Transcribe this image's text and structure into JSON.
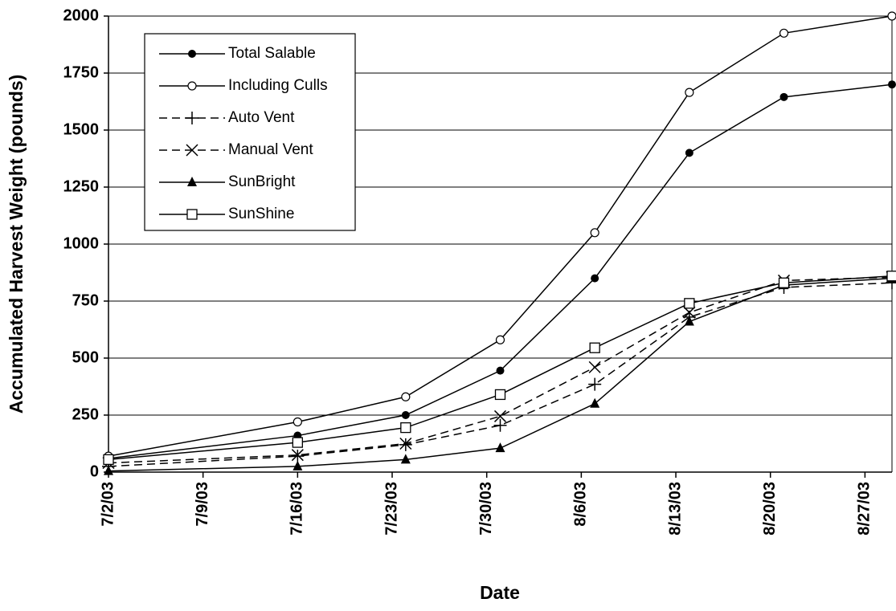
{
  "chart_data": {
    "type": "line",
    "x_label": "Date",
    "y_label": "Accumulated Harvest Weight (pounds)",
    "x": [
      "7/2/03",
      "7/16/03",
      "7/24/03",
      "7/31/03",
      "8/7/03",
      "8/14/03",
      "8/21/03",
      "8/29/03"
    ],
    "xlim": [
      "7/2/03",
      "8/29/03"
    ],
    "xticks": [
      "7/2/03",
      "7/9/03",
      "7/16/03",
      "7/23/03",
      "7/30/03",
      "8/6/03",
      "8/13/03",
      "8/20/03",
      "8/27/03"
    ],
    "ylim": [
      0,
      2000
    ],
    "yticks": [
      0,
      250,
      500,
      750,
      1000,
      1250,
      1500,
      1750,
      2000
    ],
    "grid": true,
    "legend": "upper left",
    "series": [
      {
        "name": "Total Salable",
        "color": "#000000",
        "marker": "filled-circle",
        "dash": false,
        "values": [
          60,
          160,
          250,
          445,
          850,
          1400,
          1645,
          1700
        ]
      },
      {
        "name": "Including Culls",
        "color": "#000000",
        "marker": "open-circle",
        "dash": false,
        "values": [
          70,
          220,
          330,
          580,
          1050,
          1665,
          1925,
          2000
        ]
      },
      {
        "name": "Auto Vent",
        "color": "#000000",
        "marker": "plus",
        "dash": true,
        "values": [
          25,
          70,
          120,
          205,
          385,
          680,
          810,
          830
        ]
      },
      {
        "name": "Manual Vent",
        "color": "#000000",
        "marker": "cross",
        "dash": true,
        "values": [
          40,
          75,
          125,
          245,
          460,
          700,
          840,
          855
        ]
      },
      {
        "name": "SunBright",
        "color": "#000000",
        "marker": "triangle",
        "dash": false,
        "values": [
          5,
          25,
          55,
          105,
          300,
          660,
          820,
          850
        ]
      },
      {
        "name": "SunShine",
        "color": "#000000",
        "marker": "open-square",
        "dash": false,
        "values": [
          55,
          130,
          195,
          340,
          545,
          740,
          830,
          860
        ]
      }
    ]
  }
}
